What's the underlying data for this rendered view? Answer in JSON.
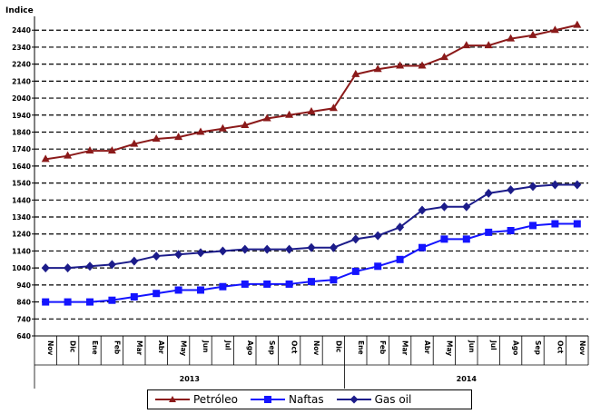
{
  "chart_data": {
    "type": "line",
    "ylabel": "Indice",
    "ylim": [
      640,
      2500
    ],
    "yticks": [
      640,
      740,
      840,
      940,
      1040,
      1140,
      1240,
      1340,
      1440,
      1540,
      1640,
      1740,
      1840,
      1940,
      2040,
      2140,
      2240,
      2340,
      2440
    ],
    "grid": true,
    "categories": [
      "Nov",
      "Dic",
      "Ene",
      "Feb",
      "Mar",
      "Abr",
      "May",
      "Jun",
      "Jul",
      "Ago",
      "Sep",
      "Oct",
      "Nov",
      "Dic",
      "Ene",
      "Feb",
      "Mar",
      "Abr",
      "May",
      "Jun",
      "Jul",
      "Ago",
      "Sep",
      "Oct",
      "Nov"
    ],
    "groups": [
      {
        "label": "2013",
        "start": 0,
        "end": 13
      },
      {
        "label": "2014",
        "start": 14,
        "end": 24
      }
    ],
    "series": [
      {
        "name": "Petróleo",
        "color": "#8b1a1a",
        "marker": "triangle",
        "values": [
          1680,
          1700,
          1730,
          1730,
          1770,
          1800,
          1810,
          1840,
          1860,
          1880,
          1920,
          1940,
          1960,
          1980,
          2180,
          2210,
          2230,
          2230,
          2280,
          2350,
          2350,
          2390,
          2410,
          2440,
          2470
        ]
      },
      {
        "name": "Naftas",
        "color": "#1414ff",
        "marker": "square",
        "values": [
          840,
          840,
          840,
          850,
          870,
          890,
          910,
          910,
          930,
          945,
          945,
          945,
          960,
          970,
          1020,
          1050,
          1090,
          1160,
          1210,
          1210,
          1250,
          1260,
          1290,
          1300,
          1300
        ]
      },
      {
        "name": "Gas oil",
        "color": "#1c1c8a",
        "marker": "diamond",
        "values": [
          1040,
          1040,
          1050,
          1060,
          1080,
          1110,
          1120,
          1130,
          1140,
          1150,
          1150,
          1150,
          1160,
          1160,
          1210,
          1230,
          1280,
          1380,
          1400,
          1400,
          1480,
          1500,
          1520,
          1530,
          1530
        ]
      }
    ]
  }
}
